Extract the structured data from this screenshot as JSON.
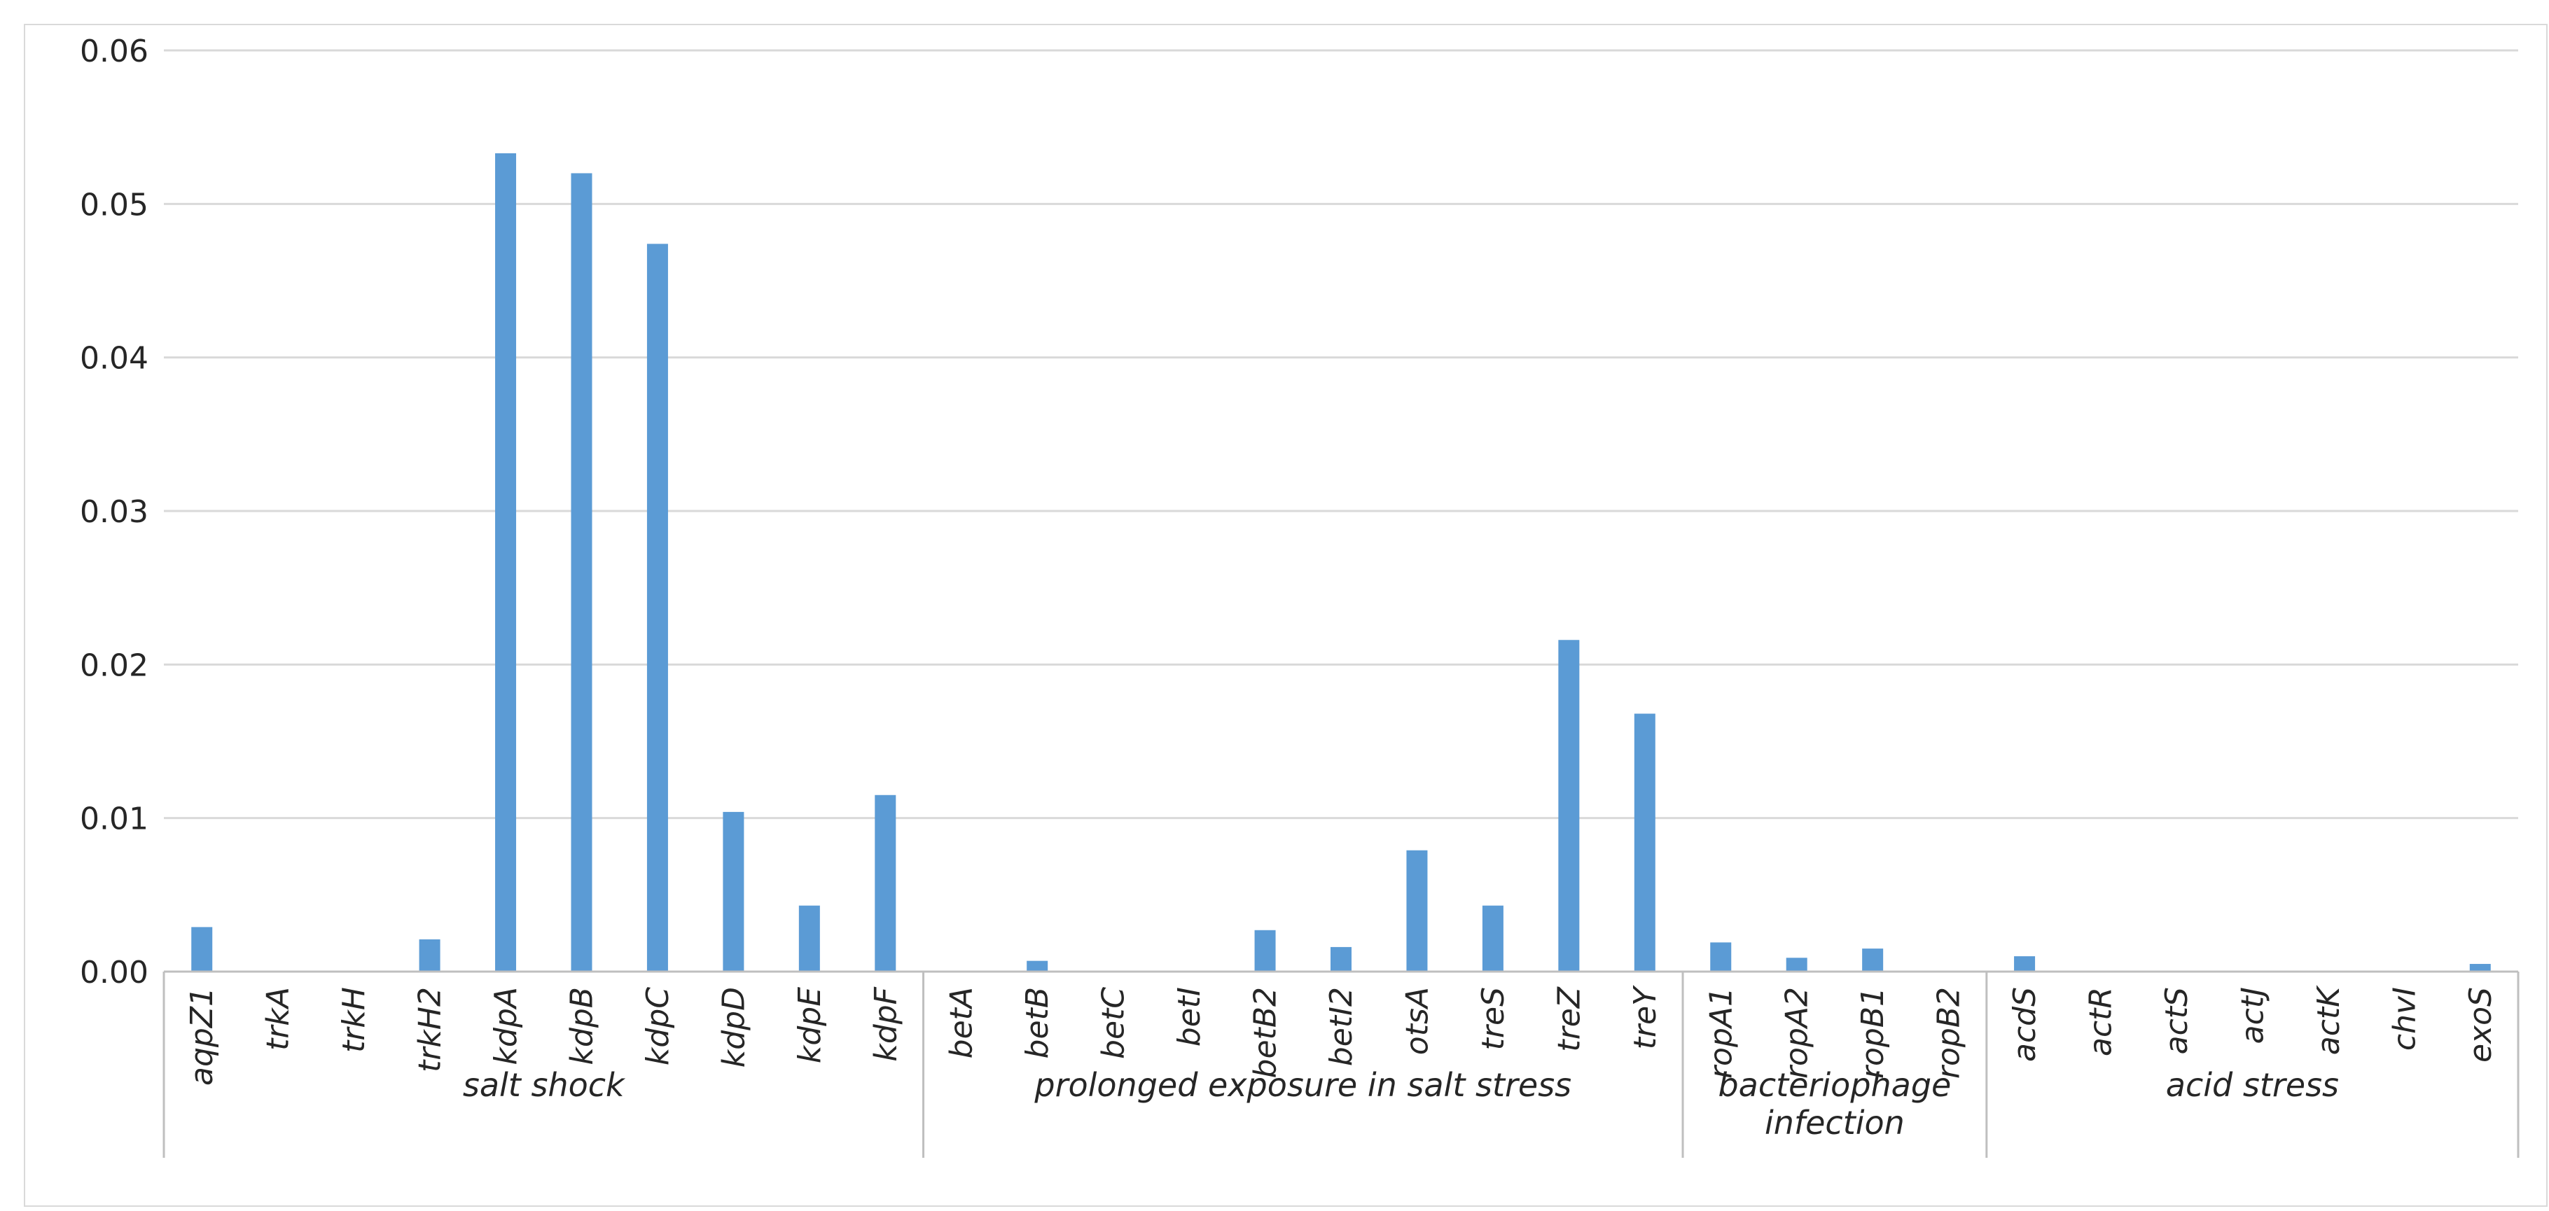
{
  "chart_data": {
    "type": "bar",
    "title": "",
    "xlabel": "",
    "ylabel": "",
    "ylim": [
      0,
      0.06
    ],
    "yticks": [
      "0.00",
      "0.01",
      "0.02",
      "0.03",
      "0.04",
      "0.05",
      "0.06"
    ],
    "ytick_values": [
      0,
      0.01,
      0.02,
      0.03,
      0.04,
      0.05,
      0.06
    ],
    "grid": true,
    "legend": "none",
    "bar_color": "#5b9bd5",
    "categories": [
      "aqpZ1",
      "trkA",
      "trkH",
      "trkH2",
      "kdpA",
      "kdpB",
      "kdpC",
      "kdpD",
      "kdpE",
      "kdpF",
      "betA",
      "betB",
      "betC",
      "betI",
      "betB2",
      "betI2",
      "otsA",
      "treS",
      "treZ",
      "treY",
      "ropA1",
      "ropA2",
      "ropB1",
      "ropB2",
      "acdS",
      "actR",
      "actS",
      "actJ",
      "actK",
      "chvI",
      "exoS"
    ],
    "values": [
      0.0029,
      0,
      0,
      0.0021,
      0.0533,
      0.052,
      0.0474,
      0.0104,
      0.0043,
      0.0115,
      0,
      0.0007,
      0,
      0,
      0.0027,
      0.0016,
      0.0079,
      0.0043,
      0.0216,
      0.0168,
      0.0019,
      0.0009,
      0.0015,
      0,
      0.001,
      0,
      0,
      0,
      0,
      0,
      0.0005
    ],
    "groups": [
      {
        "label_lines": [
          "salt shock"
        ],
        "start": 0,
        "end": 9
      },
      {
        "label_lines": [
          "prolonged exposure in salt stress"
        ],
        "start": 10,
        "end": 19
      },
      {
        "label_lines": [
          "bacteriophage",
          "infection"
        ],
        "start": 20,
        "end": 23
      },
      {
        "label_lines": [
          "acid stress"
        ],
        "start": 24,
        "end": 30
      }
    ]
  }
}
